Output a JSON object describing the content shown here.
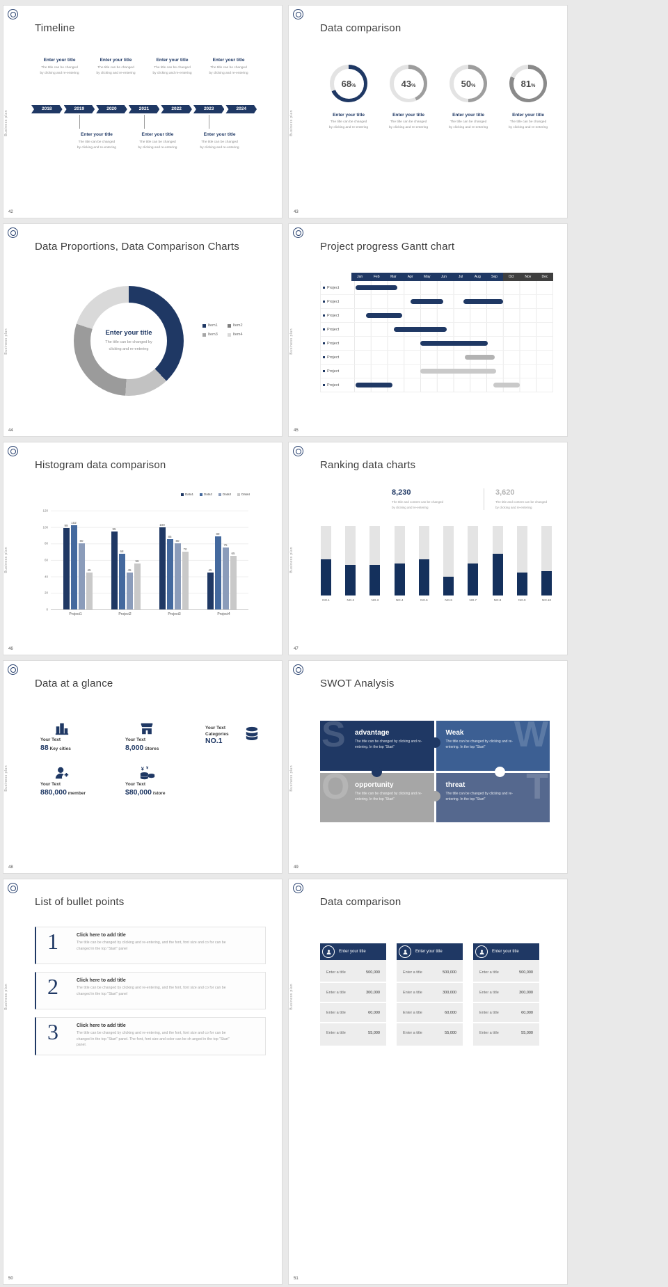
{
  "shared": {
    "side_label": "Business plan",
    "enter_title": "Enter your title",
    "desc_l1": "The title can be changed",
    "desc_l2": "by clicking and re-entering"
  },
  "slides": {
    "s42": {
      "number": "42",
      "title": "Timeline",
      "years": [
        "2018",
        "2019",
        "2020",
        "2021",
        "2022",
        "2023",
        "2024"
      ],
      "above_items": 4,
      "below_items": 3,
      "accent": "#1f3864"
    },
    "s43": {
      "number": "43",
      "title": "Data comparison",
      "track_color": "#e3e3e3",
      "rings": [
        {
          "value": 68,
          "unit": "%",
          "color": "#1f3864"
        },
        {
          "value": 43,
          "unit": "%",
          "color": "#9d9d9d"
        },
        {
          "value": 50,
          "unit": "%",
          "color": "#9d9d9d"
        },
        {
          "value": 81,
          "unit": "%",
          "color": "#8a8a8a"
        }
      ]
    },
    "s44": {
      "number": "44",
      "title": "Data Proportions, Data Comparison Charts",
      "center_title": "Enter your title",
      "center_desc_l1": "The title can be changed by",
      "center_desc_l2": "clicking and re-entering",
      "legend": [
        {
          "label": "Item1",
          "color": "#1f3864"
        },
        {
          "label": "Item2",
          "color": "#7f7f7f"
        },
        {
          "label": "Item3",
          "color": "#a6a6a6"
        },
        {
          "label": "Item4",
          "color": "#d9d9d9"
        }
      ],
      "segments": [
        {
          "value": 38,
          "color": "#1f3864"
        },
        {
          "value": 13,
          "color": "#c2c2c2"
        },
        {
          "value": 29,
          "color": "#9b9b9b"
        },
        {
          "value": 20,
          "color": "#d9d9d9"
        }
      ]
    },
    "s45": {
      "number": "45",
      "title": "Project progress Gantt chart",
      "months": [
        "Jan",
        "Feb",
        "Mar",
        "Apr",
        "May",
        "Jun",
        "Jul",
        "Aug",
        "Sep",
        "Oct",
        "Nov",
        "Dec"
      ],
      "month_header_colors": {
        "primary": "#1f3864",
        "muted": "#3f3f3f",
        "muted_from": 9
      },
      "row_label": "Project",
      "rows": [
        {
          "bars": [
            {
              "start": 0.1,
              "end": 2.6,
              "color": "#1f3864"
            }
          ]
        },
        {
          "bars": [
            {
              "start": 3.4,
              "end": 5.4,
              "color": "#1f3864"
            },
            {
              "start": 6.6,
              "end": 9.0,
              "color": "#1f3864"
            }
          ]
        },
        {
          "bars": [
            {
              "start": 0.7,
              "end": 2.9,
              "color": "#1f3864"
            }
          ]
        },
        {
          "bars": [
            {
              "start": 2.4,
              "end": 5.6,
              "color": "#1f3864"
            }
          ]
        },
        {
          "bars": [
            {
              "start": 4.0,
              "end": 8.1,
              "color": "#1f3864"
            }
          ]
        },
        {
          "bars": [
            {
              "start": 6.7,
              "end": 8.5,
              "color": "#b3b3b3"
            }
          ]
        },
        {
          "bars": [
            {
              "start": 4.0,
              "end": 8.6,
              "color": "#c9c9c9"
            }
          ]
        },
        {
          "bars": [
            {
              "start": 0.1,
              "end": 2.3,
              "color": "#1f3864"
            },
            {
              "start": 8.4,
              "end": 10.0,
              "color": "#c9c9c9"
            }
          ]
        }
      ]
    },
    "s46": {
      "number": "46",
      "title": "Histogram data comparison",
      "chart": {
        "type": "bar",
        "categories": [
          "Project1",
          "Project2",
          "Project3",
          "Project4"
        ],
        "series": [
          {
            "name": "Data1",
            "color": "#1f3864",
            "values": [
              99,
              95,
              100,
              45
            ]
          },
          {
            "name": "Data2",
            "color": "#44699e",
            "values": [
              102,
              68,
              85,
              89
            ]
          },
          {
            "name": "Data3",
            "color": "#8b9cba",
            "values": [
              80,
              45,
              80,
              75
            ]
          },
          {
            "name": "Data4",
            "color": "#c9c9c9",
            "values": [
              45,
              56,
              70,
              65
            ]
          }
        ],
        "y_ticks": [
          0,
          20,
          40,
          60,
          80,
          100,
          120
        ],
        "y_max": 120
      }
    },
    "s47": {
      "number": "47",
      "title": "Ranking data charts",
      "stat_primary": {
        "value": "8,230",
        "desc_l1": "The title and content can be changed",
        "desc_l2": "by clicking and re-entering"
      },
      "stat_secondary": {
        "value": "3,620",
        "desc_l1": "The title and content can be changed",
        "desc_l2": "by clicking and re-entering"
      },
      "chart": {
        "type": "bar",
        "categories": [
          "NO.1",
          "NO.2",
          "NO.3",
          "NO.4",
          "NO.5",
          "NO.6",
          "NO.7",
          "NO.8",
          "NO.9",
          "NO.10"
        ],
        "values_pct": [
          52,
          44,
          44,
          46,
          52,
          27,
          46,
          60,
          33,
          35
        ],
        "bar_color": "#14305c",
        "track_color": "#e4e4e4"
      }
    },
    "s48": {
      "number": "48",
      "title": "Data at a glance",
      "label": "Your Text",
      "stats": [
        {
          "icon": "city-icon",
          "big": "88",
          "small": "Key cities"
        },
        {
          "icon": "store-icon",
          "big": "8,000",
          "small": "Stores"
        },
        {
          "icon": "boxes-icon",
          "small": "Categories",
          "big": "NO.1"
        },
        {
          "icon": "member-icon",
          "big": "880,000",
          "small": "member"
        },
        {
          "icon": "coins-icon",
          "big": "$80,000",
          "small": "/store"
        }
      ]
    },
    "s49": {
      "number": "49",
      "title": "SWOT Analysis",
      "desc": "The title can be changed by clicking and re-entering. In the top “Start”",
      "quads": [
        {
          "letter": "S",
          "label": "advantage",
          "color": "#1f3864"
        },
        {
          "letter": "W",
          "label": "Weak",
          "color": "#3c5f93"
        },
        {
          "letter": "O",
          "label": "opportunity",
          "color": "#a6a6a6"
        },
        {
          "letter": "T",
          "label": "threat",
          "color": "#55688e"
        }
      ]
    },
    "s50": {
      "number": "50",
      "title": "List of bullet points",
      "items": [
        {
          "num": "1",
          "heading": "Click here to add title",
          "desc": "The title can be changed by clicking and re-entering, and the font, font size and co for can be changed in the top “Start” panel"
        },
        {
          "num": "2",
          "heading": "Click here to add title",
          "desc": "The title can be changed by clicking and re-entering, and the font, font size and co for can be changed in the top “Start” panel"
        },
        {
          "num": "3",
          "heading": "Click here to add title",
          "desc": "The title can be changed by clicking and re-entering, and the font, font size and co for can be changed in the top “Start” panel. The font, font size and color can be ch anged in the top “Start” panel."
        }
      ]
    },
    "s51": {
      "number": "51",
      "title": "Data comparison",
      "column_count": 3,
      "column_header": "Enter your title",
      "rows": [
        {
          "label": "Enter a title",
          "value": "500,000"
        },
        {
          "label": "Enter a title",
          "value": "300,000"
        },
        {
          "label": "Enter a title",
          "value": "60,000"
        },
        {
          "label": "Enter a title",
          "value": "55,000"
        }
      ]
    }
  }
}
